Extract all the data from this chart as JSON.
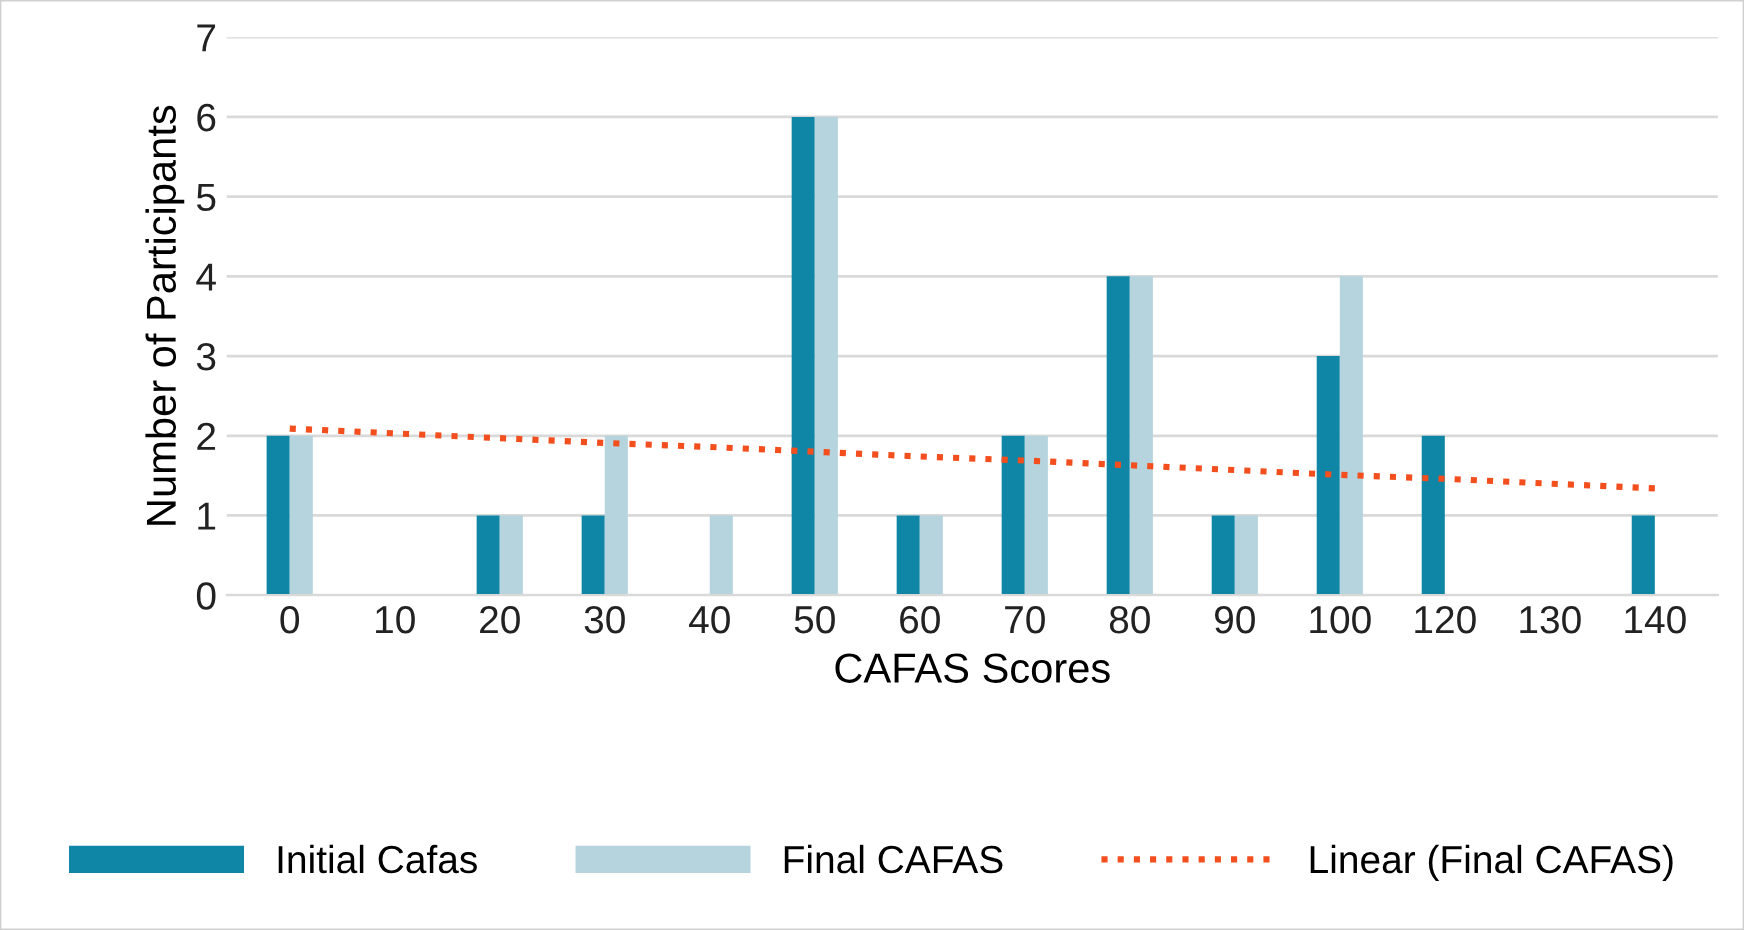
{
  "chart_data": {
    "type": "bar",
    "xlabel": "CAFAS Scores",
    "ylabel": "Number of Participants",
    "categories": [
      "0",
      "10",
      "20",
      "30",
      "40",
      "50",
      "60",
      "70",
      "80",
      "90",
      "100",
      "120",
      "130",
      "140"
    ],
    "series": [
      {
        "name": "Initial Cafas",
        "color": "#0f86a6",
        "values": [
          2,
          0,
          1,
          1,
          0,
          6,
          1,
          2,
          4,
          1,
          3,
          2,
          0,
          1
        ]
      },
      {
        "name": "Final CAFAS",
        "color": "#b5d4de",
        "values": [
          2,
          0,
          1,
          2,
          1,
          6,
          1,
          2,
          4,
          1,
          4,
          0,
          0,
          0
        ]
      },
      {
        "name": "Linear (Final CAFAS)",
        "type": "line",
        "line_style": "dotted",
        "color": "#f24e1e",
        "values": [
          2.09,
          2.03,
          1.97,
          1.91,
          1.86,
          1.8,
          1.74,
          1.69,
          1.63,
          1.57,
          1.51,
          1.46,
          1.4,
          1.34
        ]
      }
    ],
    "ylim": [
      0,
      7
    ],
    "yticks": [
      0,
      1,
      2,
      3,
      4,
      5,
      6,
      7
    ],
    "grid": "y",
    "legend": "bottom"
  }
}
